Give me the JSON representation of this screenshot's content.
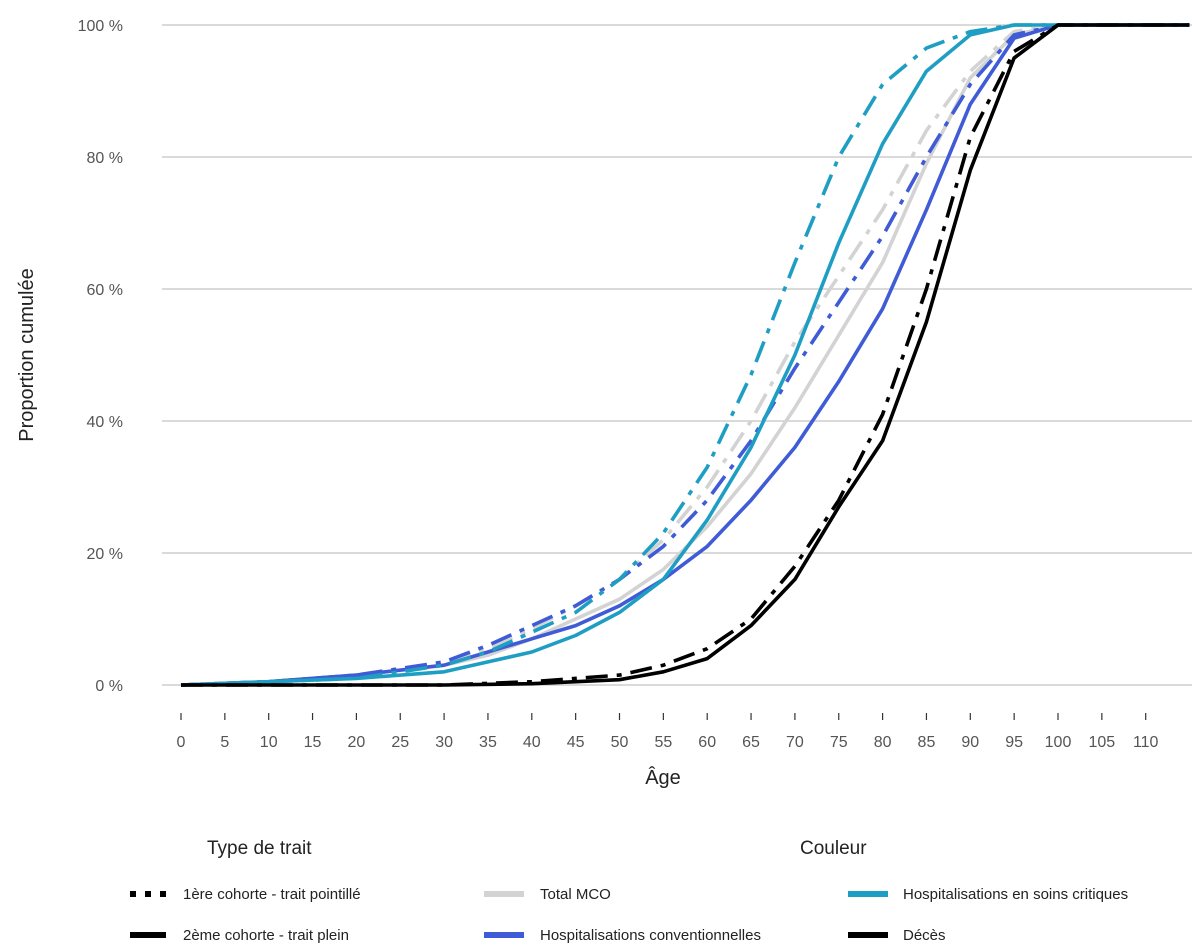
{
  "chart_data": {
    "type": "line",
    "xlabel": "Âge",
    "ylabel": "Proportion cumulée",
    "xlim": [
      0,
      115
    ],
    "ylim": [
      0,
      100
    ],
    "x_ticks": [
      0,
      5,
      10,
      15,
      20,
      25,
      30,
      35,
      40,
      45,
      50,
      55,
      60,
      65,
      70,
      75,
      80,
      85,
      90,
      95,
      100,
      105,
      110
    ],
    "y_ticks": [
      0,
      20,
      40,
      60,
      80,
      100
    ],
    "y_tick_labels": [
      "0 %",
      "20 %",
      "40 %",
      "60 %",
      "80 %",
      "100 %"
    ],
    "grid": "horizontal major",
    "legend_position": "bottom",
    "legend_linetype": {
      "title": "Type de trait",
      "entries": [
        {
          "label": "1ère cohorte - trait pointillé",
          "dash": "dotted"
        },
        {
          "label": "2ème cohorte - trait plein",
          "dash": "solid"
        }
      ]
    },
    "legend_color": {
      "title": "Couleur",
      "entries": [
        {
          "label": "Total MCO",
          "color": "#d3d3d3"
        },
        {
          "label": "Hospitalisations conventionnelles",
          "color": "#3f5bd6"
        },
        {
          "label": "Hospitalisations en soins critiques",
          "color": "#1f9ec4"
        },
        {
          "label": "Décès",
          "color": "#000000"
        }
      ]
    },
    "series": [
      {
        "group": "Total MCO",
        "cohort": 1,
        "color": "#d3d3d3",
        "dash": "dashdot",
        "x": [
          0,
          10,
          20,
          30,
          35,
          40,
          45,
          50,
          55,
          60,
          65,
          70,
          75,
          80,
          85,
          90,
          95,
          100,
          115
        ],
        "y": [
          0,
          0.5,
          1.5,
          3.5,
          5.5,
          8.5,
          12,
          16,
          22,
          30,
          40,
          52,
          62,
          72,
          84,
          93,
          99,
          100,
          100
        ]
      },
      {
        "group": "Total MCO",
        "cohort": 2,
        "color": "#d3d3d3",
        "dash": "solid",
        "x": [
          0,
          10,
          20,
          30,
          35,
          40,
          45,
          50,
          55,
          60,
          65,
          70,
          75,
          80,
          85,
          90,
          95,
          100,
          115
        ],
        "y": [
          0,
          0.5,
          1.5,
          3,
          4.5,
          7,
          10,
          13,
          17.5,
          24,
          32,
          42,
          53,
          64,
          79,
          92,
          98.5,
          100,
          100
        ]
      },
      {
        "group": "Hospitalisations conventionnelles",
        "cohort": 1,
        "color": "#3f5bd6",
        "dash": "dashdot",
        "x": [
          0,
          10,
          20,
          30,
          35,
          40,
          45,
          50,
          55,
          60,
          65,
          70,
          75,
          80,
          85,
          90,
          95,
          100,
          115
        ],
        "y": [
          0,
          0.5,
          1.5,
          3.5,
          6,
          9,
          12,
          16,
          21,
          28,
          37,
          48,
          58,
          68,
          80,
          91,
          98.5,
          100,
          100
        ]
      },
      {
        "group": "Hospitalisations conventionnelles",
        "cohort": 2,
        "color": "#3f5bd6",
        "dash": "solid",
        "x": [
          0,
          10,
          20,
          30,
          35,
          40,
          45,
          50,
          55,
          60,
          65,
          70,
          75,
          80,
          85,
          90,
          95,
          100,
          115
        ],
        "y": [
          0,
          0.5,
          1.5,
          3,
          5,
          7,
          9,
          12,
          16,
          21,
          28,
          36,
          46,
          57,
          72,
          88,
          98,
          100,
          100
        ]
      },
      {
        "group": "Hospitalisations en soins critiques",
        "cohort": 1,
        "color": "#1f9ec4",
        "dash": "dashdot",
        "x": [
          0,
          10,
          20,
          30,
          35,
          40,
          45,
          50,
          55,
          60,
          65,
          70,
          75,
          80,
          85,
          90,
          95,
          100,
          115
        ],
        "y": [
          0,
          0.5,
          1,
          3,
          5,
          8,
          11,
          16,
          23,
          33,
          47,
          64,
          80,
          91,
          96.5,
          99,
          100,
          100,
          100
        ]
      },
      {
        "group": "Hospitalisations en soins critiques",
        "cohort": 2,
        "color": "#1f9ec4",
        "dash": "solid",
        "x": [
          0,
          10,
          20,
          30,
          35,
          40,
          45,
          50,
          55,
          60,
          65,
          70,
          75,
          80,
          85,
          90,
          95,
          100,
          115
        ],
        "y": [
          0,
          0.5,
          1,
          2,
          3.5,
          5,
          7.5,
          11,
          16,
          25,
          36,
          50,
          67,
          82,
          93,
          98.5,
          100,
          100,
          100
        ]
      },
      {
        "group": "Décès",
        "cohort": 1,
        "color": "#000000",
        "dash": "dashdot",
        "x": [
          0,
          10,
          20,
          30,
          40,
          50,
          55,
          60,
          65,
          70,
          75,
          80,
          85,
          90,
          95,
          100,
          115
        ],
        "y": [
          0,
          0,
          0,
          0,
          0.5,
          1.5,
          3,
          5.5,
          10,
          18,
          28,
          41,
          60,
          83,
          96,
          100,
          100
        ]
      },
      {
        "group": "Décès",
        "cohort": 2,
        "color": "#000000",
        "dash": "solid",
        "x": [
          0,
          10,
          20,
          30,
          40,
          50,
          55,
          60,
          65,
          70,
          75,
          80,
          85,
          90,
          95,
          100,
          115
        ],
        "y": [
          0,
          0,
          0,
          0,
          0.2,
          0.8,
          2,
          4,
          9,
          16,
          27,
          37,
          55,
          78,
          95,
          100,
          100
        ]
      }
    ]
  }
}
